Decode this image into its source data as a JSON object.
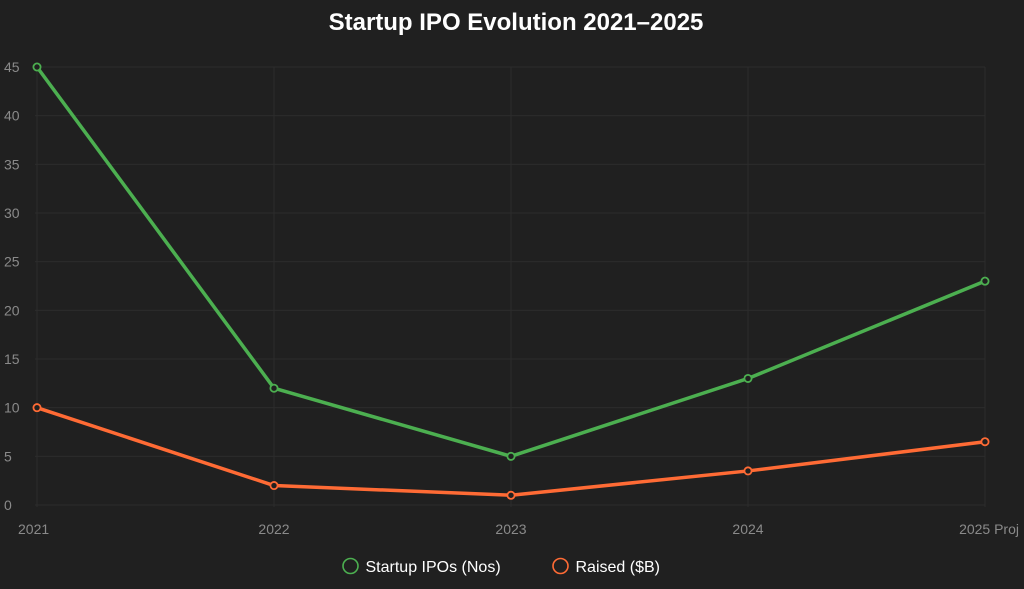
{
  "chart_data": {
    "type": "line",
    "title": "Startup IPO Evolution 2021–2025",
    "categories": [
      "2021",
      "2022",
      "2023",
      "2024",
      "2025 Proj"
    ],
    "ylim": [
      0,
      45
    ],
    "yticks": [
      0,
      5,
      10,
      15,
      20,
      25,
      30,
      35,
      40,
      45
    ],
    "grid": true,
    "legend_position": "bottom",
    "series": [
      {
        "name": "Startup IPOs (Nos)",
        "color": "#4caf50",
        "values": [
          45,
          12,
          5,
          13,
          23
        ]
      },
      {
        "name": "Raised ($B)",
        "color": "#ff6b35",
        "values": [
          10,
          2,
          1,
          3.5,
          6.5
        ]
      }
    ]
  }
}
